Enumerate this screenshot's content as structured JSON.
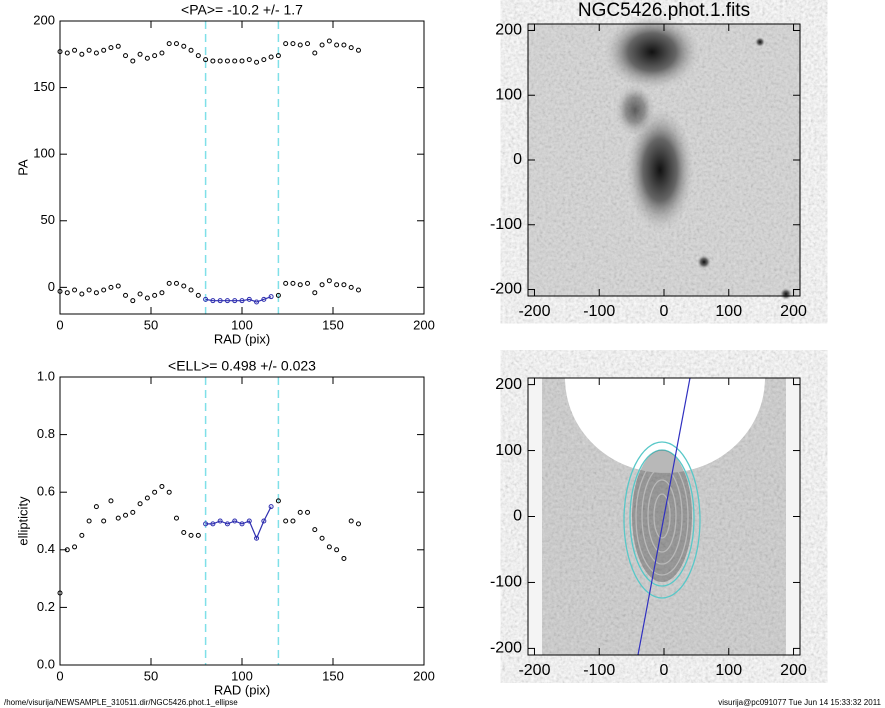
{
  "chart_data": [
    {
      "type": "scatter",
      "title": "<PA>= -10.2 +/-   1.7",
      "xlabel": "RAD (pix)",
      "ylabel": "PA",
      "xlim": [
        0,
        200
      ],
      "ylim": [
        -20,
        200
      ],
      "xticks": [
        0,
        50,
        100,
        150,
        200
      ],
      "yticks": [
        0,
        50,
        100,
        150,
        200
      ],
      "vlines": [
        80,
        120
      ],
      "vline_color": "#7fe0e8",
      "series": [
        {
          "color": "#000000",
          "connect": false,
          "x": [
            0,
            4,
            8,
            12,
            16,
            20,
            24,
            28,
            32,
            36,
            40,
            44,
            48,
            52,
            56,
            60,
            64,
            68,
            72,
            76,
            80,
            84,
            88,
            92,
            96,
            100,
            104,
            108,
            112,
            116,
            120,
            124,
            128,
            132,
            136,
            140,
            144,
            148,
            152,
            156,
            160,
            164
          ],
          "values": [
            177,
            176,
            178,
            175,
            178,
            176,
            178,
            180,
            181,
            174,
            170,
            175,
            172,
            174,
            176,
            183,
            183,
            181,
            178,
            174,
            171,
            170,
            170,
            170,
            170,
            170,
            171,
            169,
            171,
            173,
            174,
            183,
            183,
            182,
            183,
            176,
            182,
            185,
            182,
            182,
            180,
            178
          ]
        },
        {
          "color": "#000000",
          "connect": false,
          "x": [
            0,
            4,
            8,
            12,
            16,
            20,
            24,
            28,
            32,
            36,
            40,
            44,
            48,
            52,
            56,
            60,
            64,
            68,
            72,
            76,
            120,
            124,
            128,
            132,
            136,
            140,
            144,
            148,
            152,
            156,
            160,
            164
          ],
          "values": [
            -3,
            -4,
            -2,
            -5,
            -2,
            -4,
            -2,
            0,
            1,
            -6,
            -10,
            -5,
            -8,
            -6,
            -4,
            3,
            3,
            1,
            -2,
            -6,
            -6,
            3,
            3,
            2,
            3,
            -4,
            2,
            5,
            2,
            2,
            0,
            -2
          ]
        },
        {
          "color": "#2f2fb0",
          "connect": true,
          "x": [
            80,
            84,
            88,
            92,
            96,
            100,
            104,
            108,
            112,
            116
          ],
          "values": [
            -9,
            -10,
            -10,
            -10,
            -10,
            -10,
            -9,
            -11,
            -9,
            -7
          ]
        }
      ]
    },
    {
      "type": "image",
      "title": "NGC5426.phot.1.fits",
      "xlim": [
        -210,
        210
      ],
      "ylim": [
        -210,
        210
      ],
      "xticks": [
        -200,
        -100,
        0,
        100,
        200
      ],
      "yticks": [
        -200,
        -100,
        0,
        100,
        200
      ]
    },
    {
      "type": "scatter",
      "title": "<ELL>= 0.498 +/-  0.023",
      "xlabel": "RAD (pix)",
      "ylabel": "ellipticity",
      "xlim": [
        0,
        200
      ],
      "ylim": [
        0,
        1
      ],
      "xticks": [
        0,
        50,
        100,
        150,
        200
      ],
      "yticks": [
        {
          "value": 0,
          "label": "0.0"
        },
        {
          "value": 0.2,
          "label": "0.2"
        },
        {
          "value": 0.4,
          "label": "0.4"
        },
        {
          "value": 0.6,
          "label": "0.6"
        },
        {
          "value": 0.8,
          "label": "0.8"
        },
        {
          "value": 1,
          "label": "1.0"
        }
      ],
      "vlines": [
        80,
        120
      ],
      "vline_color": "#7fe0e8",
      "series": [
        {
          "color": "#000000",
          "connect": false,
          "x": [
            0,
            4,
            8,
            12,
            16,
            20,
            24,
            28,
            32,
            36,
            40,
            44,
            48,
            52,
            56,
            60,
            64,
            68,
            72,
            76,
            120,
            124,
            128,
            132,
            136,
            140,
            144,
            148,
            152,
            156,
            160,
            164
          ],
          "values": [
            0.25,
            0.4,
            0.41,
            0.45,
            0.5,
            0.55,
            0.5,
            0.57,
            0.51,
            0.52,
            0.53,
            0.56,
            0.58,
            0.6,
            0.62,
            0.6,
            0.51,
            0.46,
            0.45,
            0.45,
            0.57,
            0.5,
            0.5,
            0.53,
            0.53,
            0.47,
            0.44,
            0.41,
            0.4,
            0.37,
            0.5,
            0.49
          ]
        },
        {
          "color": "#2f2fb0",
          "connect": true,
          "x": [
            80,
            84,
            88,
            92,
            96,
            100,
            104,
            108,
            112,
            116
          ],
          "values": [
            0.49,
            0.49,
            0.5,
            0.49,
            0.5,
            0.49,
            0.5,
            0.44,
            0.5,
            0.55
          ]
        }
      ]
    },
    {
      "type": "image",
      "xlim": [
        -210,
        210
      ],
      "ylim": [
        -210,
        210
      ],
      "xticks": [
        -200,
        -100,
        0,
        100,
        200
      ],
      "yticks": [
        -200,
        -100,
        0,
        100,
        200
      ]
    }
  ],
  "footer": {
    "left": "/home/visurija/NEWSAMPLE_310511.dir/NGC5426.phot.1_ellipse",
    "right": "visurija@pc091077  Tue Jun 14 15:33:32 2011"
  }
}
